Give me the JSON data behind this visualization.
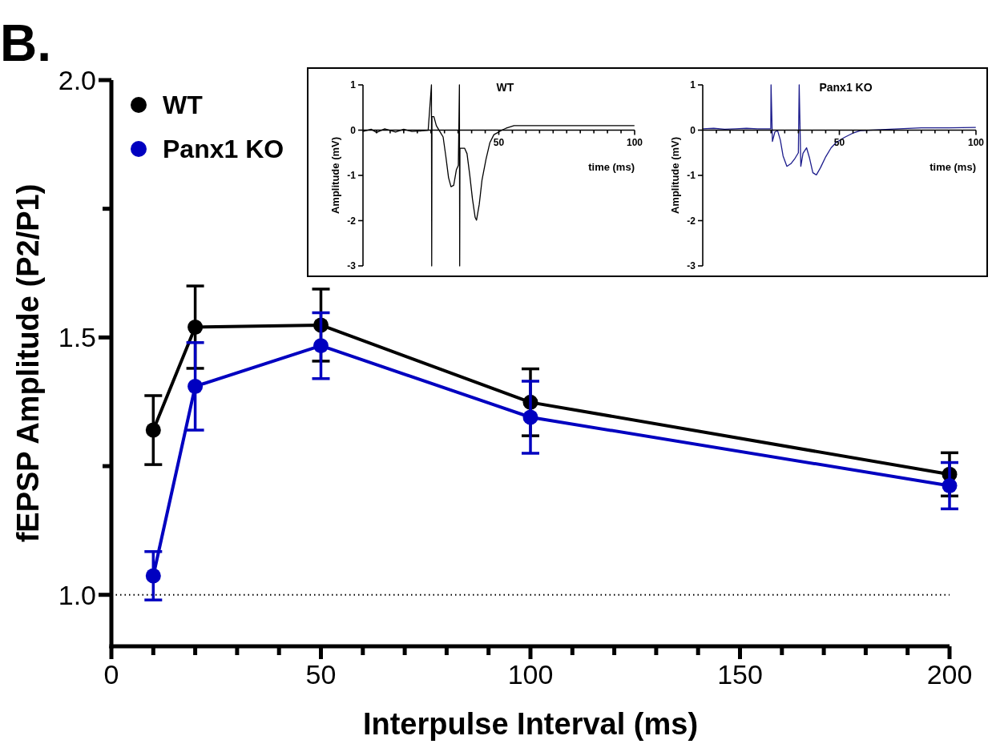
{
  "chart_data": [
    {
      "type": "line",
      "title": "B.",
      "xlabel": "Interpulse Interval (ms)",
      "ylabel": "fEPSP Amplitude (P2/P1)",
      "x": [
        10,
        20,
        50,
        100,
        200
      ],
      "series": [
        {
          "name": "WT",
          "color": "#000000",
          "values": [
            1.32,
            1.52,
            1.524,
            1.374,
            1.234
          ],
          "errors": [
            0.067,
            0.08,
            0.07,
            0.065,
            0.042
          ]
        },
        {
          "name": "Panx1 KO",
          "color": "#0000c0",
          "values": [
            1.037,
            1.405,
            1.484,
            1.345,
            1.212
          ],
          "errors": [
            0.047,
            0.085,
            0.064,
            0.07,
            0.045
          ]
        }
      ],
      "xlim": [
        0,
        200
      ],
      "xticks": [
        0,
        {
          "value": 10,
          "label": null
        },
        {
          "value": 20,
          "label": null
        },
        {
          "value": 30,
          "label": null
        },
        {
          "value": 40,
          "label": null
        },
        50,
        {
          "value": 60,
          "label": null
        },
        {
          "value": 70,
          "label": null
        },
        {
          "value": 80,
          "label": null
        },
        {
          "value": 90,
          "label": null
        },
        100,
        {
          "value": 110,
          "label": null
        },
        {
          "value": 120,
          "label": null
        },
        {
          "value": 130,
          "label": null
        },
        {
          "value": 140,
          "label": null
        },
        150,
        {
          "value": 160,
          "label": null
        },
        {
          "value": 170,
          "label": null
        },
        {
          "value": 180,
          "label": null
        },
        {
          "value": 190,
          "label": null
        },
        200
      ],
      "ylim": [
        0.9,
        2.0
      ],
      "yticks": [
        {
          "value": 1,
          "label": "1.0"
        },
        {
          "value": 1.25,
          "label": null
        },
        {
          "value": 1.5,
          "label": "1.5"
        },
        {
          "value": 1.75,
          "label": null
        },
        {
          "value": 2,
          "label": "2.0"
        }
      ],
      "ref_lines": [
        {
          "axis": "y",
          "value": 1,
          "color": "#000000",
          "line_style": "dotted"
        }
      ],
      "marker": "circle",
      "line_style": "solid",
      "legend": "top left",
      "grid": false
    },
    {
      "type": "line",
      "title": "WT",
      "xlabel": "time (ms)",
      "ylabel": "Amplitude (mV)",
      "series": [
        {
          "color": "#000000",
          "x": [
            0,
            3,
            5,
            8,
            12,
            15,
            18,
            21,
            24,
            25.2,
            25.3,
            25.4,
            26.1,
            27.0,
            28.5,
            29.5,
            30.5,
            31.5,
            32.4,
            33.4,
            34.4,
            35.1,
            35.5,
            35.6,
            35.7,
            36.4,
            37.4,
            38.3,
            39.3,
            40.3,
            41.3,
            41.8,
            42.8,
            43.8,
            45.3,
            46.7,
            48.2,
            49.7,
            51.1,
            52.6,
            55.6,
            70,
            85,
            99.8
          ],
          "values": [
            -0.03,
            0.02,
            -0.05,
            0.03,
            -0.04,
            0.02,
            -0.03,
            -0.02,
            0.0,
            1,
            -3,
            0.3,
            0.3,
            0.1,
            -0.05,
            -0.15,
            -0.58,
            -1.05,
            -1.25,
            -1.22,
            -0.87,
            -0.78,
            1,
            -3,
            -0.4,
            -0.4,
            -0.4,
            -0.52,
            -0.99,
            -1.52,
            -1.93,
            -1.99,
            -1.64,
            -1.11,
            -0.64,
            -0.28,
            -0.1,
            -0.05,
            0,
            0.04,
            0.1,
            0.1,
            0.1,
            0.1
          ]
        }
      ],
      "xlim": [
        0,
        100
      ],
      "xticks": [
        {
          "value": 5,
          "label": null
        },
        {
          "value": 10,
          "label": null
        },
        {
          "value": 15,
          "label": null
        },
        {
          "value": 20,
          "label": null
        },
        {
          "value": 25,
          "label": null
        },
        {
          "value": 30,
          "label": null
        },
        {
          "value": 35,
          "label": null
        },
        {
          "value": 40,
          "label": null
        },
        {
          "value": 45,
          "label": null
        },
        50,
        {
          "value": 55,
          "label": null
        },
        {
          "value": 60,
          "label": null
        },
        {
          "value": 65,
          "label": null
        },
        {
          "value": 70,
          "label": null
        },
        {
          "value": 75,
          "label": null
        },
        {
          "value": 80,
          "label": null
        },
        {
          "value": 85,
          "label": null
        },
        {
          "value": 90,
          "label": null
        },
        {
          "value": 95,
          "label": null
        },
        100
      ],
      "ylim": [
        -3,
        1
      ],
      "yticks": [
        -3,
        -2,
        -1,
        0,
        1
      ],
      "line_style": "solid"
    },
    {
      "type": "line",
      "title": "Panx1 KO",
      "xlabel": "time (ms)",
      "ylabel": "Amplitude (mV)",
      "series": [
        {
          "color": "#1c1c8c",
          "x": [
            0,
            4,
            8,
            12,
            16,
            20,
            24.9,
            25.0,
            25.5,
            26.4,
            27.4,
            28.4,
            29.4,
            30.8,
            32.3,
            33.8,
            35.0,
            35.3,
            35.9,
            36.7,
            38.0,
            39.1,
            40.3,
            41.6,
            43.1,
            45.0,
            47.0,
            48.9,
            51.9,
            54.8,
            57.7,
            68.5,
            80,
            90,
            99.8
          ],
          "values": [
            0.03,
            0.04,
            0.02,
            0.03,
            0.04,
            0.03,
            0.03,
            1,
            -0.25,
            -0.04,
            -0.01,
            -0.22,
            -0.57,
            -0.8,
            -0.74,
            -0.62,
            -0.5,
            1,
            -0.8,
            -0.51,
            -0.39,
            -0.62,
            -0.94,
            -0.99,
            -0.83,
            -0.59,
            -0.39,
            -0.27,
            -0.16,
            -0.07,
            -0.01,
            0.02,
            0.05,
            0.05,
            0.06
          ]
        }
      ],
      "xlim": [
        0,
        100
      ],
      "xticks": [
        {
          "value": 5,
          "label": null
        },
        {
          "value": 10,
          "label": null
        },
        {
          "value": 15,
          "label": null
        },
        {
          "value": 20,
          "label": null
        },
        {
          "value": 25,
          "label": null
        },
        {
          "value": 30,
          "label": null
        },
        {
          "value": 35,
          "label": null
        },
        {
          "value": 40,
          "label": null
        },
        {
          "value": 45,
          "label": null
        },
        50,
        {
          "value": 55,
          "label": null
        },
        {
          "value": 60,
          "label": null
        },
        {
          "value": 65,
          "label": null
        },
        {
          "value": 70,
          "label": null
        },
        {
          "value": 75,
          "label": null
        },
        {
          "value": 80,
          "label": null
        },
        {
          "value": 85,
          "label": null
        },
        {
          "value": 90,
          "label": null
        },
        {
          "value": 95,
          "label": null
        },
        100
      ],
      "ylim": [
        -3,
        1
      ],
      "yticks": [
        -3,
        -2,
        -1,
        0,
        1
      ],
      "line_style": "solid"
    }
  ]
}
